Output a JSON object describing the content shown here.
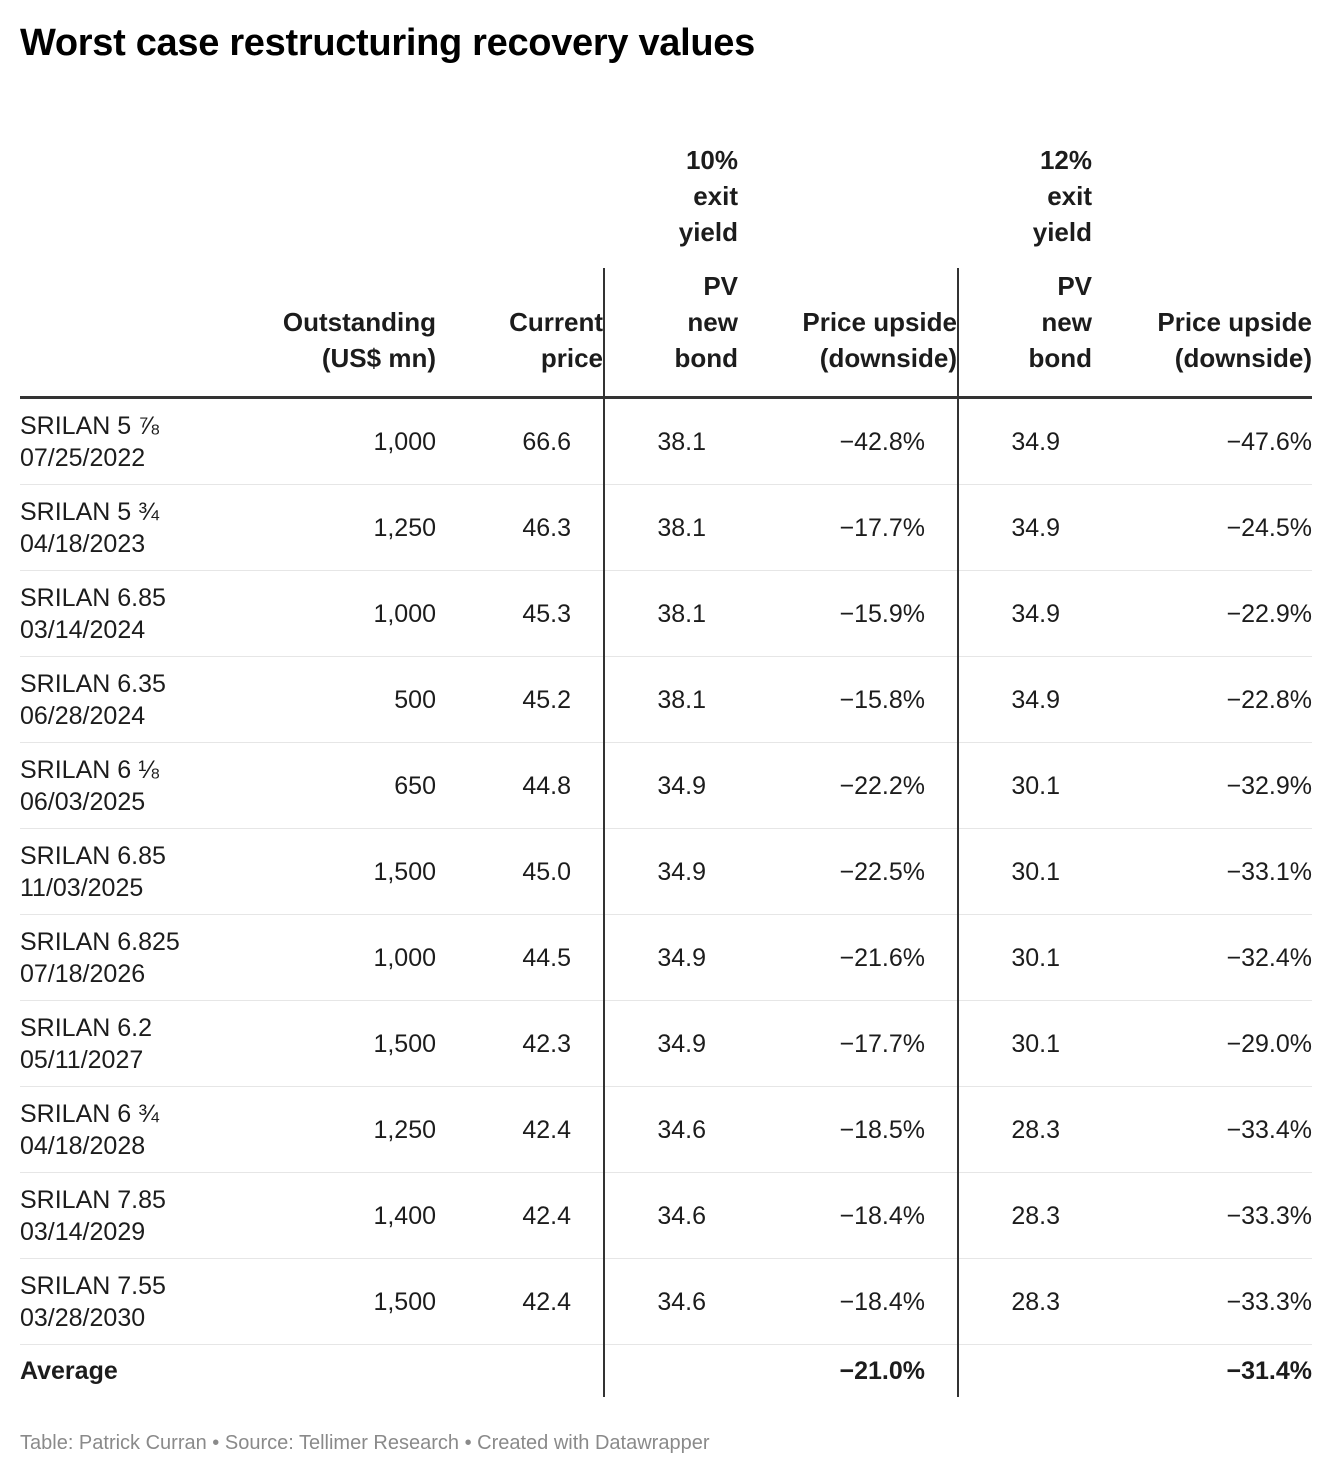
{
  "title": "Worst case restructuring recovery values",
  "footer": "Table: Patrick Curran • Source: Tellimer Research • Created with Datawrapper",
  "chart_data": {
    "type": "table",
    "group_headers": [
      "10% exit yield",
      "12% exit yield"
    ],
    "columns": [
      "",
      "Outstanding (US$ mn)",
      "Current price",
      "PV new bond",
      "Price upside (downside)",
      "PV new bond",
      "Price upside (downside)"
    ],
    "rows": [
      {
        "bond": "SRILAN 5 ⅞",
        "date": "07/25/2022",
        "outstanding": "1,000",
        "price": "66.6",
        "pv10": "38.1",
        "up10": "−42.8%",
        "pv12": "34.9",
        "up12": "−47.6%"
      },
      {
        "bond": "SRILAN 5 ¾",
        "date": "04/18/2023",
        "outstanding": "1,250",
        "price": "46.3",
        "pv10": "38.1",
        "up10": "−17.7%",
        "pv12": "34.9",
        "up12": "−24.5%"
      },
      {
        "bond": "SRILAN 6.85",
        "date": "03/14/2024",
        "outstanding": "1,000",
        "price": "45.3",
        "pv10": "38.1",
        "up10": "−15.9%",
        "pv12": "34.9",
        "up12": "−22.9%"
      },
      {
        "bond": "SRILAN 6.35",
        "date": "06/28/2024",
        "outstanding": "500",
        "price": "45.2",
        "pv10": "38.1",
        "up10": "−15.8%",
        "pv12": "34.9",
        "up12": "−22.8%"
      },
      {
        "bond": "SRILAN 6 ⅛",
        "date": "06/03/2025",
        "outstanding": "650",
        "price": "44.8",
        "pv10": "34.9",
        "up10": "−22.2%",
        "pv12": "30.1",
        "up12": "−32.9%"
      },
      {
        "bond": "SRILAN 6.85",
        "date": "11/03/2025",
        "outstanding": "1,500",
        "price": "45.0",
        "pv10": "34.9",
        "up10": "−22.5%",
        "pv12": "30.1",
        "up12": "−33.1%"
      },
      {
        "bond": "SRILAN 6.825",
        "date": "07/18/2026",
        "outstanding": "1,000",
        "price": "44.5",
        "pv10": "34.9",
        "up10": "−21.6%",
        "pv12": "30.1",
        "up12": "−32.4%"
      },
      {
        "bond": "SRILAN 6.2",
        "date": "05/11/2027",
        "outstanding": "1,500",
        "price": "42.3",
        "pv10": "34.9",
        "up10": "−17.7%",
        "pv12": "30.1",
        "up12": "−29.0%"
      },
      {
        "bond": "SRILAN 6 ¾",
        "date": "04/18/2028",
        "outstanding": "1,250",
        "price": "42.4",
        "pv10": "34.6",
        "up10": "−18.5%",
        "pv12": "28.3",
        "up12": "−33.4%"
      },
      {
        "bond": "SRILAN 7.85",
        "date": "03/14/2029",
        "outstanding": "1,400",
        "price": "42.4",
        "pv10": "34.6",
        "up10": "−18.4%",
        "pv12": "28.3",
        "up12": "−33.3%"
      },
      {
        "bond": "SRILAN 7.55",
        "date": "03/28/2030",
        "outstanding": "1,500",
        "price": "42.4",
        "pv10": "34.6",
        "up10": "−18.4%",
        "pv12": "28.3",
        "up12": "−33.3%"
      }
    ],
    "average": {
      "label": "Average",
      "up10": "−21.0%",
      "up12": "−31.4%"
    }
  }
}
